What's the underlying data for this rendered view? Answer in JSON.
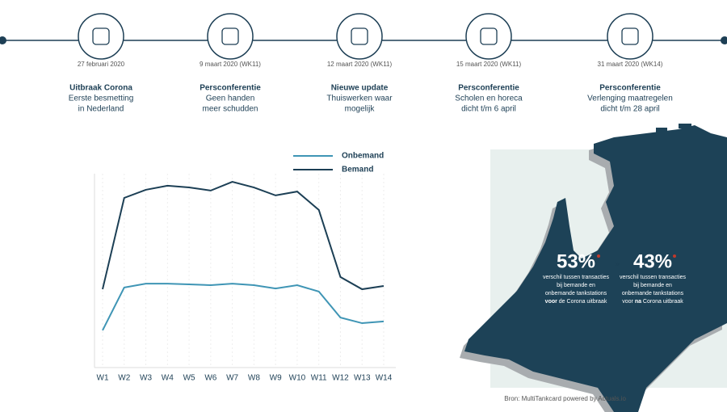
{
  "timeline": [
    {
      "date": "27 februari 2020",
      "title": "Uitbraak Corona",
      "lines": [
        "Eerste besmetting",
        "in Nederland"
      ]
    },
    {
      "date": "9 maart 2020 (WK11)",
      "title": "Persconferentie",
      "lines": [
        "Geen handen",
        "meer schudden"
      ]
    },
    {
      "date": "12 maart 2020 (WK11)",
      "title": "Nieuwe update",
      "lines": [
        "Thuiswerken waar",
        "mogelijk"
      ]
    },
    {
      "date": "15 maart 2020 (WK11)",
      "title": "Persconferentie",
      "lines": [
        "Scholen en horeca",
        "dicht t/m 6 april"
      ]
    },
    {
      "date": "31 maart 2020 (WK14)",
      "title": "Persconferentie",
      "lines": [
        "Verlenging maatregelen",
        "dicht t/m 28 april"
      ]
    }
  ],
  "chart_data": {
    "type": "line",
    "categories": [
      "W1",
      "W2",
      "W3",
      "W4",
      "W5",
      "W6",
      "W7",
      "W8",
      "W9",
      "W10",
      "W11",
      "W12",
      "W13",
      "W14"
    ],
    "series": [
      {
        "name": "Onbemand",
        "color": "#3f95b5",
        "values": [
          19.2,
          41.3,
          43.3,
          43.3,
          42.9,
          42.5,
          43.3,
          42.5,
          40.8,
          42.5,
          39.2,
          25.8,
          22.9,
          23.8
        ]
      },
      {
        "name": "Bemand",
        "color": "#1c3f55",
        "values": [
          40.4,
          87.5,
          91.7,
          93.8,
          92.9,
          91.3,
          95.8,
          92.9,
          88.8,
          90.8,
          81.3,
          46.7,
          40.4,
          42.1
        ]
      }
    ],
    "ylim": [
      0,
      100
    ]
  },
  "stats": [
    {
      "value": "53%",
      "lines": [
        "verschil tussen transacties",
        "bij bemande en",
        "onbemande tankstations"
      ],
      "bold": "voor",
      "rest": " de Corona uitbraak"
    },
    {
      "value": "43%",
      "lines": [
        "verschil tussen transacties",
        "bij bemande en",
        "onbemande tankstations"
      ],
      "bold": "na",
      "rest": " Corona uitbraak",
      "prefix": "voor "
    }
  ],
  "source": "Bron: MultiTankcard powered by Actuals.io"
}
